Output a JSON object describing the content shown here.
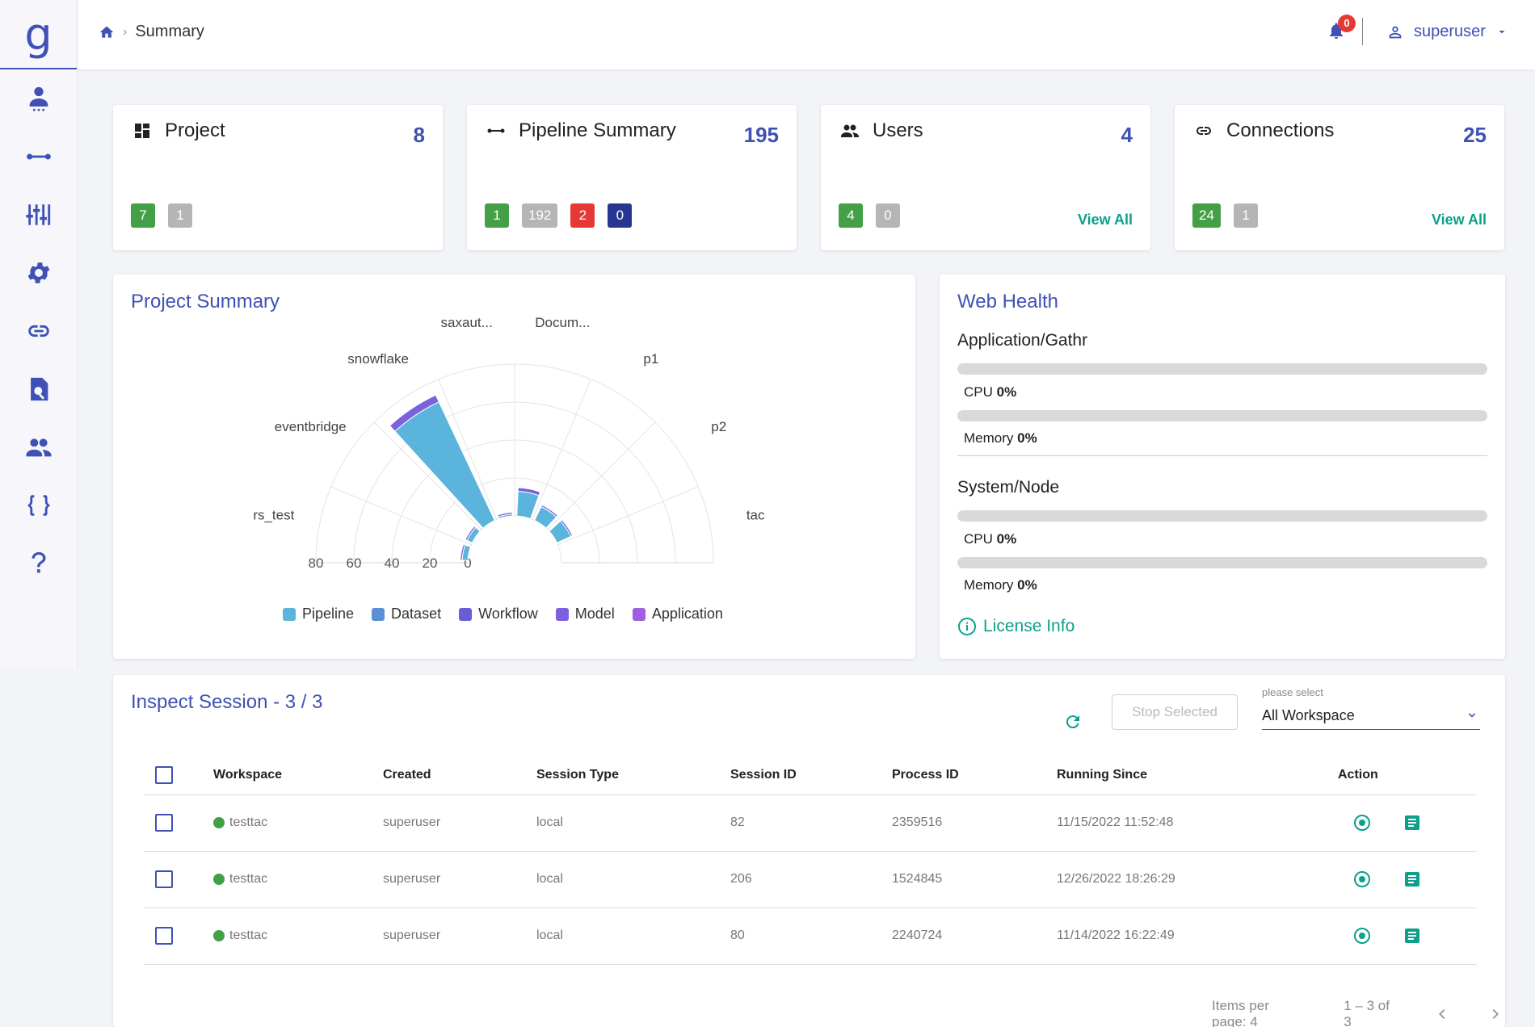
{
  "app": {
    "logo": "g"
  },
  "sidebar": {
    "items": [
      {
        "icon": "person-pin-icon"
      },
      {
        "icon": "pipeline-icon"
      },
      {
        "icon": "sliders-icon"
      },
      {
        "icon": "gear-icon"
      },
      {
        "icon": "link-icon"
      },
      {
        "icon": "doc-search-icon"
      },
      {
        "icon": "group-icon"
      },
      {
        "icon": "braces-icon"
      },
      {
        "icon": "help-icon"
      }
    ]
  },
  "header": {
    "breadcrumb": "Summary",
    "notification_count": "0",
    "username": "superuser"
  },
  "stats": [
    {
      "title": "Project",
      "count": "8",
      "icon": "dashboard-icon",
      "chips": [
        {
          "value": "7",
          "color": "#43a047"
        },
        {
          "value": "1",
          "color": "#b5b5b5"
        }
      ],
      "view_all": ""
    },
    {
      "title": "Pipeline Summary",
      "count": "195",
      "icon": "pipeline-icon",
      "chips": [
        {
          "value": "1",
          "color": "#43a047"
        },
        {
          "value": "192",
          "color": "#b5b5b5"
        },
        {
          "value": "2",
          "color": "#e53935"
        },
        {
          "value": "0",
          "color": "#283593"
        }
      ],
      "view_all": ""
    },
    {
      "title": "Users",
      "count": "4",
      "icon": "group-icon",
      "chips": [
        {
          "value": "4",
          "color": "#43a047"
        },
        {
          "value": "0",
          "color": "#b5b5b5"
        }
      ],
      "view_all": "View All"
    },
    {
      "title": "Connections",
      "count": "25",
      "icon": "link-icon",
      "chips": [
        {
          "value": "24",
          "color": "#43a047"
        },
        {
          "value": "1",
          "color": "#b5b5b5"
        }
      ],
      "view_all": "View All"
    }
  ],
  "project_summary": {
    "title": "Project Summary",
    "legend": [
      {
        "name": "Pipeline",
        "color": "#5ab4dc"
      },
      {
        "name": "Dataset",
        "color": "#5b8fd8"
      },
      {
        "name": "Workflow",
        "color": "#6a5ed8"
      },
      {
        "name": "Model",
        "color": "#7e5fe0"
      },
      {
        "name": "Application",
        "color": "#a05ee0"
      }
    ]
  },
  "chart_data": {
    "type": "bar",
    "subtype": "polar-semicircle",
    "categories": [
      "rs_test",
      "eventbridge",
      "snowflake",
      "saxaut...",
      "Docum...",
      "p1",
      "p2",
      "tac"
    ],
    "series": [
      {
        "name": "Pipeline",
        "values": [
          3,
          3,
          69,
          1,
          13,
          8,
          8,
          0
        ]
      },
      {
        "name": "Workflow",
        "values": [
          1,
          1,
          4,
          1,
          2,
          1,
          1,
          0
        ]
      }
    ],
    "radial_ticks": [
      "80",
      "60",
      "40",
      "20",
      "0"
    ],
    "ylim": [
      0,
      80
    ]
  },
  "web_health": {
    "title": "Web Health",
    "groups": [
      {
        "name": "Application/Gathr",
        "metrics": [
          {
            "label": "CPU",
            "value": "0%",
            "pct": 0
          },
          {
            "label": "Memory",
            "value": "0%",
            "pct": 0
          }
        ]
      },
      {
        "name": "System/Node",
        "metrics": [
          {
            "label": "CPU",
            "value": "0%",
            "pct": 0
          },
          {
            "label": "Memory",
            "value": "0%",
            "pct": 0
          }
        ]
      }
    ],
    "license": "License Info"
  },
  "inspect": {
    "title": "Inspect Session - 3 / 3",
    "stop_label": "Stop Selected",
    "select_hint": "please select",
    "select_value": "All Workspace",
    "columns": [
      "Workspace",
      "Created",
      "Session Type",
      "Session ID",
      "Process ID",
      "Running Since",
      "Action"
    ],
    "rows": [
      {
        "workspace": "testtac",
        "created": "superuser",
        "type": "local",
        "session_id": "82",
        "process_id": "2359516",
        "since": "11/15/2022 11:52:48"
      },
      {
        "workspace": "testtac",
        "created": "superuser",
        "type": "local",
        "session_id": "206",
        "process_id": "1524845",
        "since": "12/26/2022 18:26:29"
      },
      {
        "workspace": "testtac",
        "created": "superuser",
        "type": "local",
        "session_id": "80",
        "process_id": "2240724",
        "since": "11/14/2022 16:22:49"
      }
    ],
    "items_per_page": "Items per page: 4",
    "range": "1 – 3 of 3"
  }
}
